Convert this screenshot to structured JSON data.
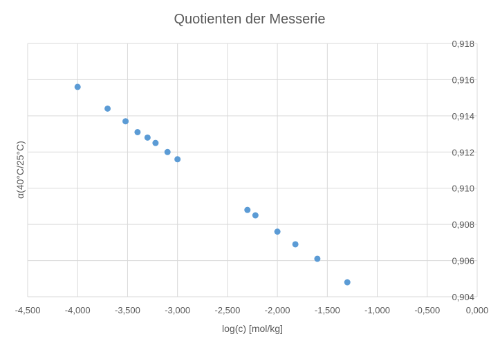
{
  "chart_data": {
    "type": "scatter",
    "title": "Quotienten der Messerie",
    "xlabel": "log(c) [mol/kg]",
    "ylabel": "α(40°C/25°C)",
    "xlim": [
      -4.5,
      0.0
    ],
    "ylim": [
      0.904,
      0.918
    ],
    "x_ticks": [
      "-4,500",
      "-4,000",
      "-3,500",
      "-3,000",
      "-2,500",
      "-2,000",
      "-1,500",
      "-1,000",
      "-0,500",
      "0,000"
    ],
    "y_ticks": [
      "0,904",
      "0,906",
      "0,908",
      "0,910",
      "0,912",
      "0,914",
      "0,916",
      "0,918"
    ],
    "y_axis_position": "right",
    "grid": true,
    "legend": "none",
    "color": "#5b9bd5",
    "series": [
      {
        "x": [
          -4.0,
          -3.7,
          -3.52,
          -3.4,
          -3.3,
          -3.22,
          -3.1,
          -3.0,
          -2.3,
          -2.22,
          -2.0,
          -1.82,
          -1.6,
          -1.3
        ],
        "y": [
          0.9156,
          0.9144,
          0.9137,
          0.9131,
          0.9128,
          0.9125,
          0.912,
          0.9116,
          0.9088,
          0.9085,
          0.9076,
          0.9069,
          0.9061,
          0.9048
        ]
      }
    ]
  }
}
